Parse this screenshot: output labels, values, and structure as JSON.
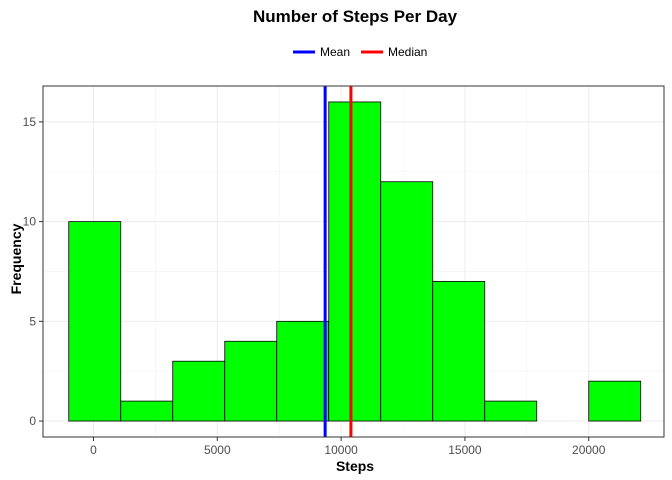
{
  "chart_data": {
    "type": "bar",
    "title": "Number of Steps Per Day",
    "xlabel": "Steps",
    "ylabel": "Frequency",
    "xlim": [
      -2040,
      23040
    ],
    "ylim": [
      -0.8,
      16.8
    ],
    "x_ticks": [
      0,
      5000,
      10000,
      15000,
      20000
    ],
    "y_ticks": [
      0,
      5,
      10,
      15
    ],
    "grid": true,
    "legend_position": "top",
    "bar_fill": "#00ff00",
    "bar_stroke": "#000000",
    "bins": [
      {
        "x_start": -1000,
        "x_end": 1100,
        "count": 10
      },
      {
        "x_start": 1100,
        "x_end": 3200,
        "count": 1
      },
      {
        "x_start": 3200,
        "x_end": 5300,
        "count": 3
      },
      {
        "x_start": 5300,
        "x_end": 7400,
        "count": 4
      },
      {
        "x_start": 7400,
        "x_end": 9500,
        "count": 5
      },
      {
        "x_start": 9500,
        "x_end": 11600,
        "count": 16
      },
      {
        "x_start": 11600,
        "x_end": 13700,
        "count": 12
      },
      {
        "x_start": 13700,
        "x_end": 15800,
        "count": 7
      },
      {
        "x_start": 15800,
        "x_end": 17900,
        "count": 1
      },
      {
        "x_start": 17900,
        "x_end": 20000,
        "count": 0
      },
      {
        "x_start": 20000,
        "x_end": 22100,
        "count": 2
      }
    ],
    "vlines": [
      {
        "name": "Mean",
        "value": 9354,
        "color": "#0000ff"
      },
      {
        "name": "Median",
        "value": 10395,
        "color": "#ff0000"
      }
    ]
  }
}
